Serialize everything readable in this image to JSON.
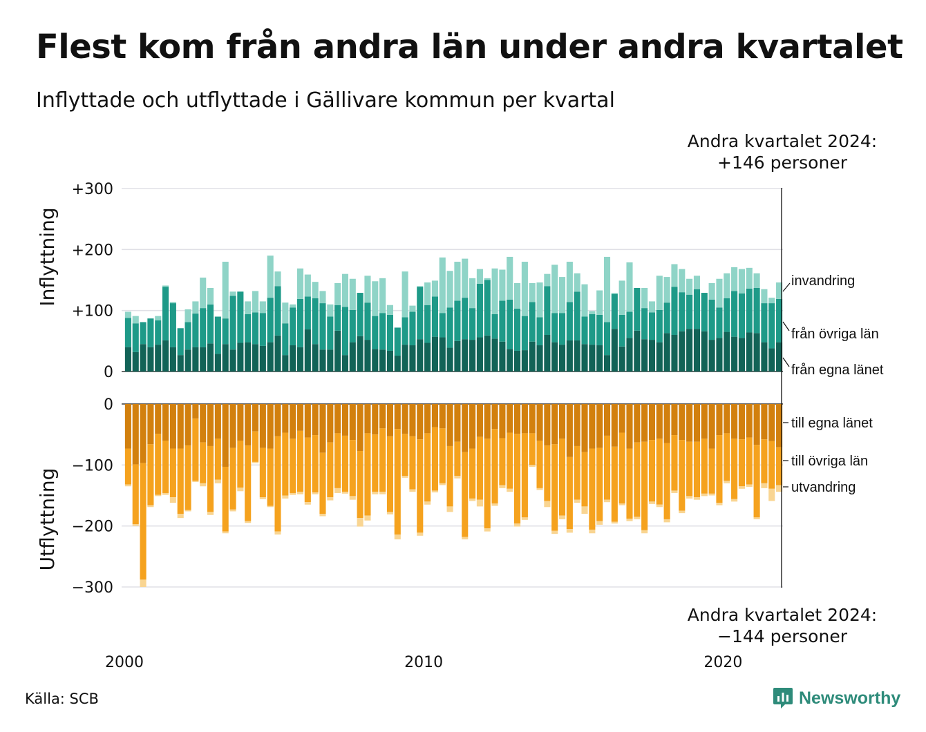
{
  "title": "Flest kom från andra län under andra kvartalet",
  "subtitle": "Inflyttade och utflyttade i Gällivare kommun per kvartal",
  "source": "Källa: SCB",
  "brand": "Newsworthy",
  "colors": {
    "in_egna": "#126357",
    "in_ovriga": "#1e9a88",
    "in_invandring": "#8fd4c7",
    "ut_egna": "#d2800e",
    "ut_ovriga": "#f5a21e",
    "ut_utvandring": "#f9d592",
    "grid": "#e0e0e6",
    "text": "#111111"
  },
  "chart_data": {
    "type": "bar",
    "stacked": true,
    "x_axis": {
      "ticks": [
        "2000",
        "2010",
        "2020"
      ],
      "start_year": 2000,
      "periods_per_year": 4
    },
    "panels": [
      {
        "ylabel": "Inflyttning",
        "ylim": [
          0,
          300
        ],
        "yticks": [
          "+300",
          "+200",
          "+100",
          "0"
        ],
        "ytick_values": [
          300,
          200,
          100,
          0
        ],
        "series": [
          {
            "name": "från egna länet",
            "values": [
              40,
              32,
              45,
              40,
              44,
              51,
              40,
              27,
              36,
              40,
              40,
              46,
              29,
              45,
              36,
              47,
              48,
              45,
              42,
              48,
              59,
              27,
              43,
              40,
              69,
              45,
              36,
              36,
              67,
              27,
              48,
              58,
              52,
              37,
              36,
              34,
              26,
              44,
              43,
              53,
              47,
              57,
              56,
              39,
              50,
              53,
              52,
              56,
              59,
              54,
              49,
              37,
              34,
              35,
              49,
              43,
              60,
              48,
              44,
              51,
              51,
              45,
              44,
              43,
              27,
              70,
              41,
              55,
              67,
              53,
              52,
              48,
              63,
              60,
              66,
              70,
              70,
              66,
              52,
              55,
              65,
              57,
              55,
              64,
              63,
              48,
              38,
              48
            ]
          },
          {
            "name": "från övriga län",
            "values": [
              48,
              47,
              36,
              47,
              40,
              88,
              72,
              44,
              45,
              55,
              64,
              64,
              61,
              42,
              88,
              84,
              46,
              52,
              54,
              73,
              81,
              52,
              62,
              79,
              54,
              75,
              76,
              54,
              42,
              79,
              53,
              71,
              61,
              54,
              60,
              59,
              46,
              45,
              55,
              86,
              62,
              66,
              40,
              66,
              66,
              68,
              52,
              88,
              91,
              40,
              67,
              81,
              69,
              56,
              65,
              46,
              80,
              48,
              52,
              63,
              80,
              45,
              50,
              50,
              54,
              57,
              52,
              43,
              70,
              51,
              45,
              53,
              50,
              79,
              64,
              56,
              65,
              63,
              66,
              50,
              55,
              75,
              73,
              72,
              74,
              64,
              74,
              71
            ]
          },
          {
            "name": "invandring",
            "values": [
              10,
              12,
              0,
              0,
              7,
              2,
              2,
              0,
              21,
              20,
              50,
              27,
              0,
              93,
              7,
              0,
              21,
              35,
              19,
              69,
              24,
              34,
              5,
              50,
              36,
              27,
              20,
              20,
              36,
              54,
              51,
              0,
              44,
              57,
              57,
              16,
              0,
              75,
              10,
              1,
              37,
              26,
              91,
              60,
              64,
              64,
              49,
              24,
              3,
              75,
              51,
              70,
              42,
              89,
              31,
              57,
              20,
              79,
              59,
              66,
              30,
              53,
              5,
              40,
              107,
              2,
              56,
              81,
              0,
              33,
              18,
              56,
              42,
              37,
              38,
              26,
              22,
              0,
              27,
              47,
              41,
              39,
              40,
              34,
              24,
              23,
              9,
              27
            ]
          }
        ]
      },
      {
        "ylabel": "Utflyttning",
        "ylim": [
          -300,
          0
        ],
        "yticks": [
          "0",
          "−100",
          "−200",
          "−300"
        ],
        "ytick_values": [
          0,
          -100,
          -200,
          -300
        ],
        "series": [
          {
            "name": "till egna länet",
            "values": [
              -73,
              -99,
              -97,
              -66,
              -49,
              -60,
              -73,
              -73,
              -68,
              -24,
              -63,
              -69,
              -57,
              -103,
              -72,
              -60,
              -68,
              -45,
              -72,
              -73,
              -53,
              -47,
              -57,
              -44,
              -55,
              -51,
              -80,
              -63,
              -48,
              -52,
              -59,
              -77,
              -48,
              -50,
              -40,
              -53,
              -41,
              -49,
              -53,
              -58,
              -48,
              -38,
              -40,
              -69,
              -62,
              -79,
              -73,
              -54,
              -57,
              -41,
              -56,
              -47,
              -49,
              -48,
              -48,
              -60,
              -68,
              -66,
              -57,
              -87,
              -69,
              -79,
              -73,
              -72,
              -52,
              -70,
              -47,
              -73,
              -63,
              -62,
              -59,
              -57,
              -64,
              -51,
              -59,
              -62,
              -62,
              -57,
              -73,
              -51,
              -48,
              -57,
              -58,
              -55,
              -67,
              -58,
              -61,
              -71
            ]
          },
          {
            "name": "till övriga län",
            "values": [
              -59,
              -98,
              -191,
              -100,
              -100,
              -86,
              -80,
              -107,
              -106,
              -102,
              -67,
              -108,
              -67,
              -106,
              -101,
              -77,
              -124,
              -50,
              -81,
              -94,
              -156,
              -103,
              -89,
              -100,
              -106,
              -94,
              -100,
              -90,
              -90,
              -92,
              -92,
              -110,
              -135,
              -94,
              -104,
              -124,
              -173,
              -69,
              -87,
              -153,
              -112,
              -104,
              -90,
              -99,
              -56,
              -139,
              -82,
              -103,
              -147,
              -122,
              -77,
              -92,
              -147,
              -138,
              -52,
              -78,
              -91,
              -142,
              -126,
              -118,
              -88,
              -89,
              -133,
              -120,
              -105,
              -123,
              -116,
              -115,
              -122,
              -145,
              -101,
              -108,
              -125,
              -91,
              -116,
              -89,
              -91,
              -90,
              -74,
              -111,
              -78,
              -99,
              -77,
              -77,
              -119,
              -72,
              -78,
              -62
            ]
          },
          {
            "name": "utvandring",
            "values": [
              -3,
              -3,
              -12,
              -3,
              -2,
              -3,
              -9,
              -7,
              -2,
              -2,
              -5,
              -5,
              -6,
              -3,
              -3,
              -6,
              -3,
              -2,
              -3,
              -2,
              -5,
              -5,
              -3,
              -4,
              -4,
              -3,
              -4,
              -5,
              -8,
              -3,
              -6,
              -14,
              -8,
              -4,
              -4,
              -4,
              -8,
              -3,
              -4,
              -5,
              -5,
              -3,
              -3,
              -9,
              -4,
              -4,
              -4,
              -11,
              -5,
              -4,
              -5,
              -5,
              -5,
              -4,
              -3,
              -3,
              -10,
              -5,
              -6,
              -6,
              -5,
              -12,
              -6,
              -6,
              -4,
              -3,
              -3,
              -4,
              -4,
              -5,
              -4,
              -4,
              -5,
              -4,
              -4,
              -4,
              -4,
              -4,
              -3,
              -4,
              -4,
              -4,
              -4,
              -4,
              -3,
              -8,
              -20,
              -11
            ]
          }
        ]
      }
    ],
    "annotations": {
      "top_line1": "Andra kvartalet 2024:",
      "top_line2": "+146 personer",
      "bottom_line1": "Andra kvartalet 2024:",
      "bottom_line2": "−144 personer"
    }
  }
}
